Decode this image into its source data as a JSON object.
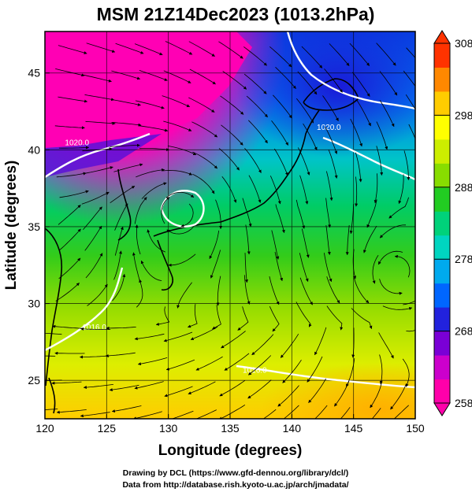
{
  "title": "MSM 21Z14Dec2023 (1013.2hPa)",
  "xlabel": "Longitude (degrees)",
  "ylabel": "Latitude  (degrees)",
  "xticks": [
    120,
    125,
    130,
    135,
    140,
    145,
    150
  ],
  "yticks": [
    25,
    30,
    35,
    40,
    45
  ],
  "xlim": [
    120,
    150
  ],
  "ylim": [
    22.5,
    47.7
  ],
  "grid": true,
  "colorbar": {
    "min": 258,
    "max": 308,
    "ticks": [
      258,
      268,
      278,
      288,
      298,
      308
    ],
    "colors": [
      "#ff00aa",
      "#cc00cc",
      "#7a00d6",
      "#2222dd",
      "#0066ff",
      "#00aaee",
      "#00d5c0",
      "#00d27a",
      "#22cc22",
      "#88dd00",
      "#ccee00",
      "#ffff00",
      "#ffcc00",
      "#ff8800",
      "#ff3300"
    ]
  },
  "contour_labels": [
    {
      "text": "1020.0",
      "lon": 122.6,
      "lat": 40.3
    },
    {
      "text": "1020.0",
      "lon": 143.0,
      "lat": 41.3
    },
    {
      "text": "1016.0",
      "lon": 124.0,
      "lat": 28.3
    },
    {
      "text": "1016.0",
      "lon": 137.0,
      "lat": 25.5
    }
  ],
  "credits": {
    "line1": "Drawing by DCL (https://www.gfd-dennou.org/library/dcl/)",
    "line2": "Data from http://database.rish.kyoto-u.ac.jp/arch/jmadata/"
  }
}
